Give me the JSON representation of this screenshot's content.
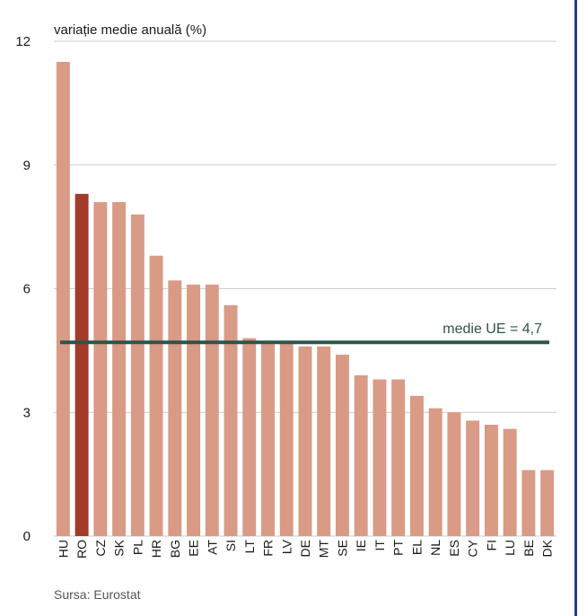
{
  "chart_data": {
    "type": "bar",
    "unit_label": "variație medie anuală (%)",
    "categories": [
      "HU",
      "RO",
      "CZ",
      "SK",
      "PL",
      "HR",
      "BG",
      "EE",
      "AT",
      "SI",
      "LT",
      "FR",
      "LV",
      "DE",
      "MT",
      "SE",
      "IE",
      "IT",
      "PT",
      "EL",
      "NL",
      "ES",
      "CY",
      "FI",
      "LU",
      "BE",
      "DK"
    ],
    "values": [
      11.5,
      8.3,
      8.1,
      8.1,
      7.8,
      6.8,
      6.2,
      6.1,
      6.1,
      5.6,
      4.8,
      4.7,
      4.7,
      4.6,
      4.6,
      4.4,
      3.9,
      3.8,
      3.8,
      3.4,
      3.1,
      3.0,
      2.8,
      2.7,
      2.6,
      1.6,
      1.6
    ],
    "highlight_category": "RO",
    "ylim": [
      0,
      12
    ],
    "yticks": [
      0,
      3,
      6,
      9,
      12
    ],
    "reference_line": {
      "value": 4.7,
      "label": "medie UE = 4,7"
    },
    "grid": true,
    "colors": {
      "bar": "#d99a86",
      "highlight": "#a33a2a",
      "reference": "#2e5448",
      "grid": "#cccccc"
    }
  },
  "source": "Sursa: Eurostat"
}
